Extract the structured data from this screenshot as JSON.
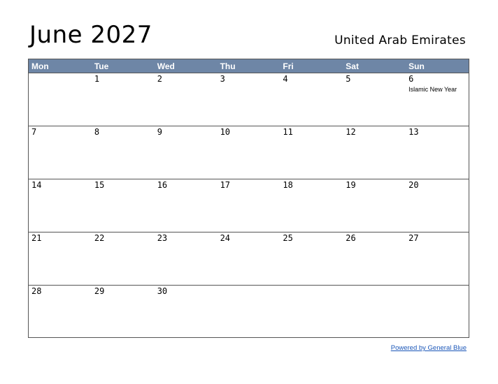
{
  "header": {
    "title": "June 2027",
    "country": "United Arab Emirates"
  },
  "weekdays": [
    "Mon",
    "Tue",
    "Wed",
    "Thu",
    "Fri",
    "Sat",
    "Sun"
  ],
  "weeks": [
    [
      {
        "day": "",
        "holiday": ""
      },
      {
        "day": "1",
        "holiday": ""
      },
      {
        "day": "2",
        "holiday": ""
      },
      {
        "day": "3",
        "holiday": ""
      },
      {
        "day": "4",
        "holiday": ""
      },
      {
        "day": "5",
        "holiday": ""
      },
      {
        "day": "6",
        "holiday": "Islamic New Year"
      }
    ],
    [
      {
        "day": "7",
        "holiday": ""
      },
      {
        "day": "8",
        "holiday": ""
      },
      {
        "day": "9",
        "holiday": ""
      },
      {
        "day": "10",
        "holiday": ""
      },
      {
        "day": "11",
        "holiday": ""
      },
      {
        "day": "12",
        "holiday": ""
      },
      {
        "day": "13",
        "holiday": ""
      }
    ],
    [
      {
        "day": "14",
        "holiday": ""
      },
      {
        "day": "15",
        "holiday": ""
      },
      {
        "day": "16",
        "holiday": ""
      },
      {
        "day": "17",
        "holiday": ""
      },
      {
        "day": "18",
        "holiday": ""
      },
      {
        "day": "19",
        "holiday": ""
      },
      {
        "day": "20",
        "holiday": ""
      }
    ],
    [
      {
        "day": "21",
        "holiday": ""
      },
      {
        "day": "22",
        "holiday": ""
      },
      {
        "day": "23",
        "holiday": ""
      },
      {
        "day": "24",
        "holiday": ""
      },
      {
        "day": "25",
        "holiday": ""
      },
      {
        "day": "26",
        "holiday": ""
      },
      {
        "day": "27",
        "holiday": ""
      }
    ],
    [
      {
        "day": "28",
        "holiday": ""
      },
      {
        "day": "29",
        "holiday": ""
      },
      {
        "day": "30",
        "holiday": ""
      },
      {
        "day": "",
        "holiday": ""
      },
      {
        "day": "",
        "holiday": ""
      },
      {
        "day": "",
        "holiday": ""
      },
      {
        "day": "",
        "holiday": ""
      }
    ]
  ],
  "footer": {
    "link_text": "Powered by General Blue"
  },
  "colors": {
    "header_bg": "#6e86a6",
    "link": "#1a56b8"
  }
}
